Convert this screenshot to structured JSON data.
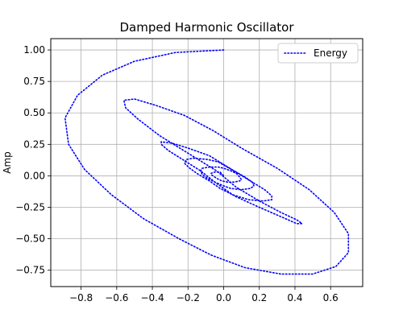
{
  "chart_data": {
    "type": "line",
    "title": "Damped Harmonic Oscillator",
    "xlabel": "",
    "ylabel": "Amp",
    "xlim": [
      -0.97,
      0.78
    ],
    "ylim": [
      -0.88,
      1.09
    ],
    "x_ticks": [
      -0.8,
      -0.6,
      -0.4,
      -0.2,
      0.0,
      0.2,
      0.4,
      0.6
    ],
    "x_tick_labels": [
      "−0.8",
      "−0.6",
      "−0.4",
      "−0.2",
      "0.0",
      "0.2",
      "0.4",
      "0.6"
    ],
    "y_ticks": [
      -0.75,
      -0.5,
      -0.25,
      0.0,
      0.25,
      0.5,
      0.75,
      1.0
    ],
    "y_tick_labels": [
      "−0.75",
      "−0.50",
      "−0.25",
      "0.00",
      "0.25",
      "0.50",
      "0.75",
      "1.00"
    ],
    "grid": true,
    "legend": {
      "placement": "top-right"
    },
    "series": [
      {
        "name": "Energy",
        "color": "#0000ff",
        "line_style": "dotted",
        "x": [
          0.0,
          -0.27,
          -0.5,
          -0.68,
          -0.82,
          -0.89,
          -0.87,
          -0.78,
          -0.63,
          -0.45,
          -0.25,
          -0.07,
          0.12,
          0.32,
          0.5,
          0.63,
          0.7,
          0.7,
          0.62,
          0.48,
          0.3,
          0.1,
          -0.06,
          -0.22,
          -0.38,
          -0.5,
          -0.56,
          -0.55,
          -0.48,
          -0.36,
          -0.2,
          -0.04,
          0.07,
          0.2,
          0.32,
          0.41,
          0.44,
          0.41,
          0.33,
          0.2,
          0.06,
          -0.04,
          -0.13,
          -0.23,
          -0.31,
          -0.35,
          -0.35,
          -0.29,
          -0.2,
          -0.08,
          0.0,
          0.08,
          0.16,
          0.23,
          0.27,
          0.27,
          0.22,
          0.14,
          0.05,
          -0.02,
          -0.08,
          -0.14,
          -0.19,
          -0.22,
          -0.21,
          -0.17,
          -0.09,
          -0.03,
          0.02,
          0.07,
          0.12,
          0.16,
          0.17,
          0.15,
          0.1,
          0.04,
          0.0,
          -0.05,
          -0.09,
          -0.12,
          -0.13,
          -0.12,
          -0.08,
          -0.03,
          0.0,
          0.04,
          0.07,
          0.09,
          0.1,
          0.09,
          0.06,
          0.02,
          -0.01,
          -0.04,
          -0.06,
          -0.07,
          -0.07,
          -0.05,
          -0.02,
          0.0
        ],
        "y": [
          1.0,
          0.98,
          0.91,
          0.8,
          0.64,
          0.46,
          0.25,
          0.05,
          -0.15,
          -0.34,
          -0.5,
          -0.63,
          -0.73,
          -0.78,
          -0.78,
          -0.72,
          -0.61,
          -0.46,
          -0.29,
          -0.11,
          0.06,
          0.22,
          0.36,
          0.48,
          0.56,
          0.61,
          0.6,
          0.54,
          0.45,
          0.32,
          0.18,
          0.04,
          -0.09,
          -0.2,
          -0.29,
          -0.35,
          -0.38,
          -0.38,
          -0.33,
          -0.25,
          -0.16,
          -0.06,
          0.04,
          0.13,
          0.2,
          0.25,
          0.27,
          0.26,
          0.22,
          0.16,
          0.09,
          0.02,
          -0.05,
          -0.11,
          -0.16,
          -0.19,
          -0.2,
          -0.19,
          -0.15,
          -0.1,
          -0.04,
          0.01,
          0.06,
          0.1,
          0.13,
          0.14,
          0.13,
          0.11,
          0.07,
          0.03,
          -0.01,
          -0.05,
          -0.08,
          -0.1,
          -0.11,
          -0.1,
          -0.08,
          -0.05,
          -0.02,
          0.01,
          0.04,
          0.06,
          0.07,
          0.07,
          0.06,
          0.04,
          0.02,
          -0.01,
          -0.03,
          -0.04,
          -0.05,
          -0.05,
          -0.04,
          -0.02,
          0.0,
          0.01,
          0.02,
          0.03,
          0.03,
          0.0
        ]
      }
    ]
  }
}
